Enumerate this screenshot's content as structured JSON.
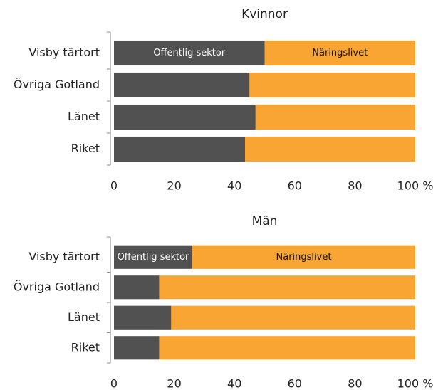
{
  "chart_data": [
    {
      "type": "stacked-bar-horizontal",
      "title": "Kvinnor",
      "categories": [
        "Visby tärtort",
        "Övriga Gotland",
        "Länet",
        "Riket"
      ],
      "series": [
        {
          "name": "Offentlig sektor",
          "color": "#505150",
          "values": [
            50,
            45,
            47,
            43.5
          ]
        },
        {
          "name": "Näringslivet",
          "color": "#f9a534",
          "values": [
            50,
            55,
            53,
            56.5
          ]
        }
      ],
      "xlim": [
        0,
        100
      ],
      "xticks": [
        0,
        20,
        40,
        60,
        80,
        {
          "value": 100,
          "label": "100 %"
        }
      ]
    },
    {
      "type": "stacked-bar-horizontal",
      "title": "Män",
      "categories": [
        "Visby tärtort",
        "Övriga Gotland",
        "Länet",
        "Riket"
      ],
      "series": [
        {
          "name": "Offentlig sektor",
          "color": "#505150",
          "values": [
            26,
            15,
            19,
            15
          ]
        },
        {
          "name": "Näringslivet",
          "color": "#f9a534",
          "values": [
            74,
            85,
            81,
            85
          ]
        }
      ],
      "xlim": [
        0,
        100
      ],
      "xticks": [
        0,
        20,
        40,
        60,
        80,
        {
          "value": 100,
          "label": "100 %"
        }
      ]
    }
  ]
}
